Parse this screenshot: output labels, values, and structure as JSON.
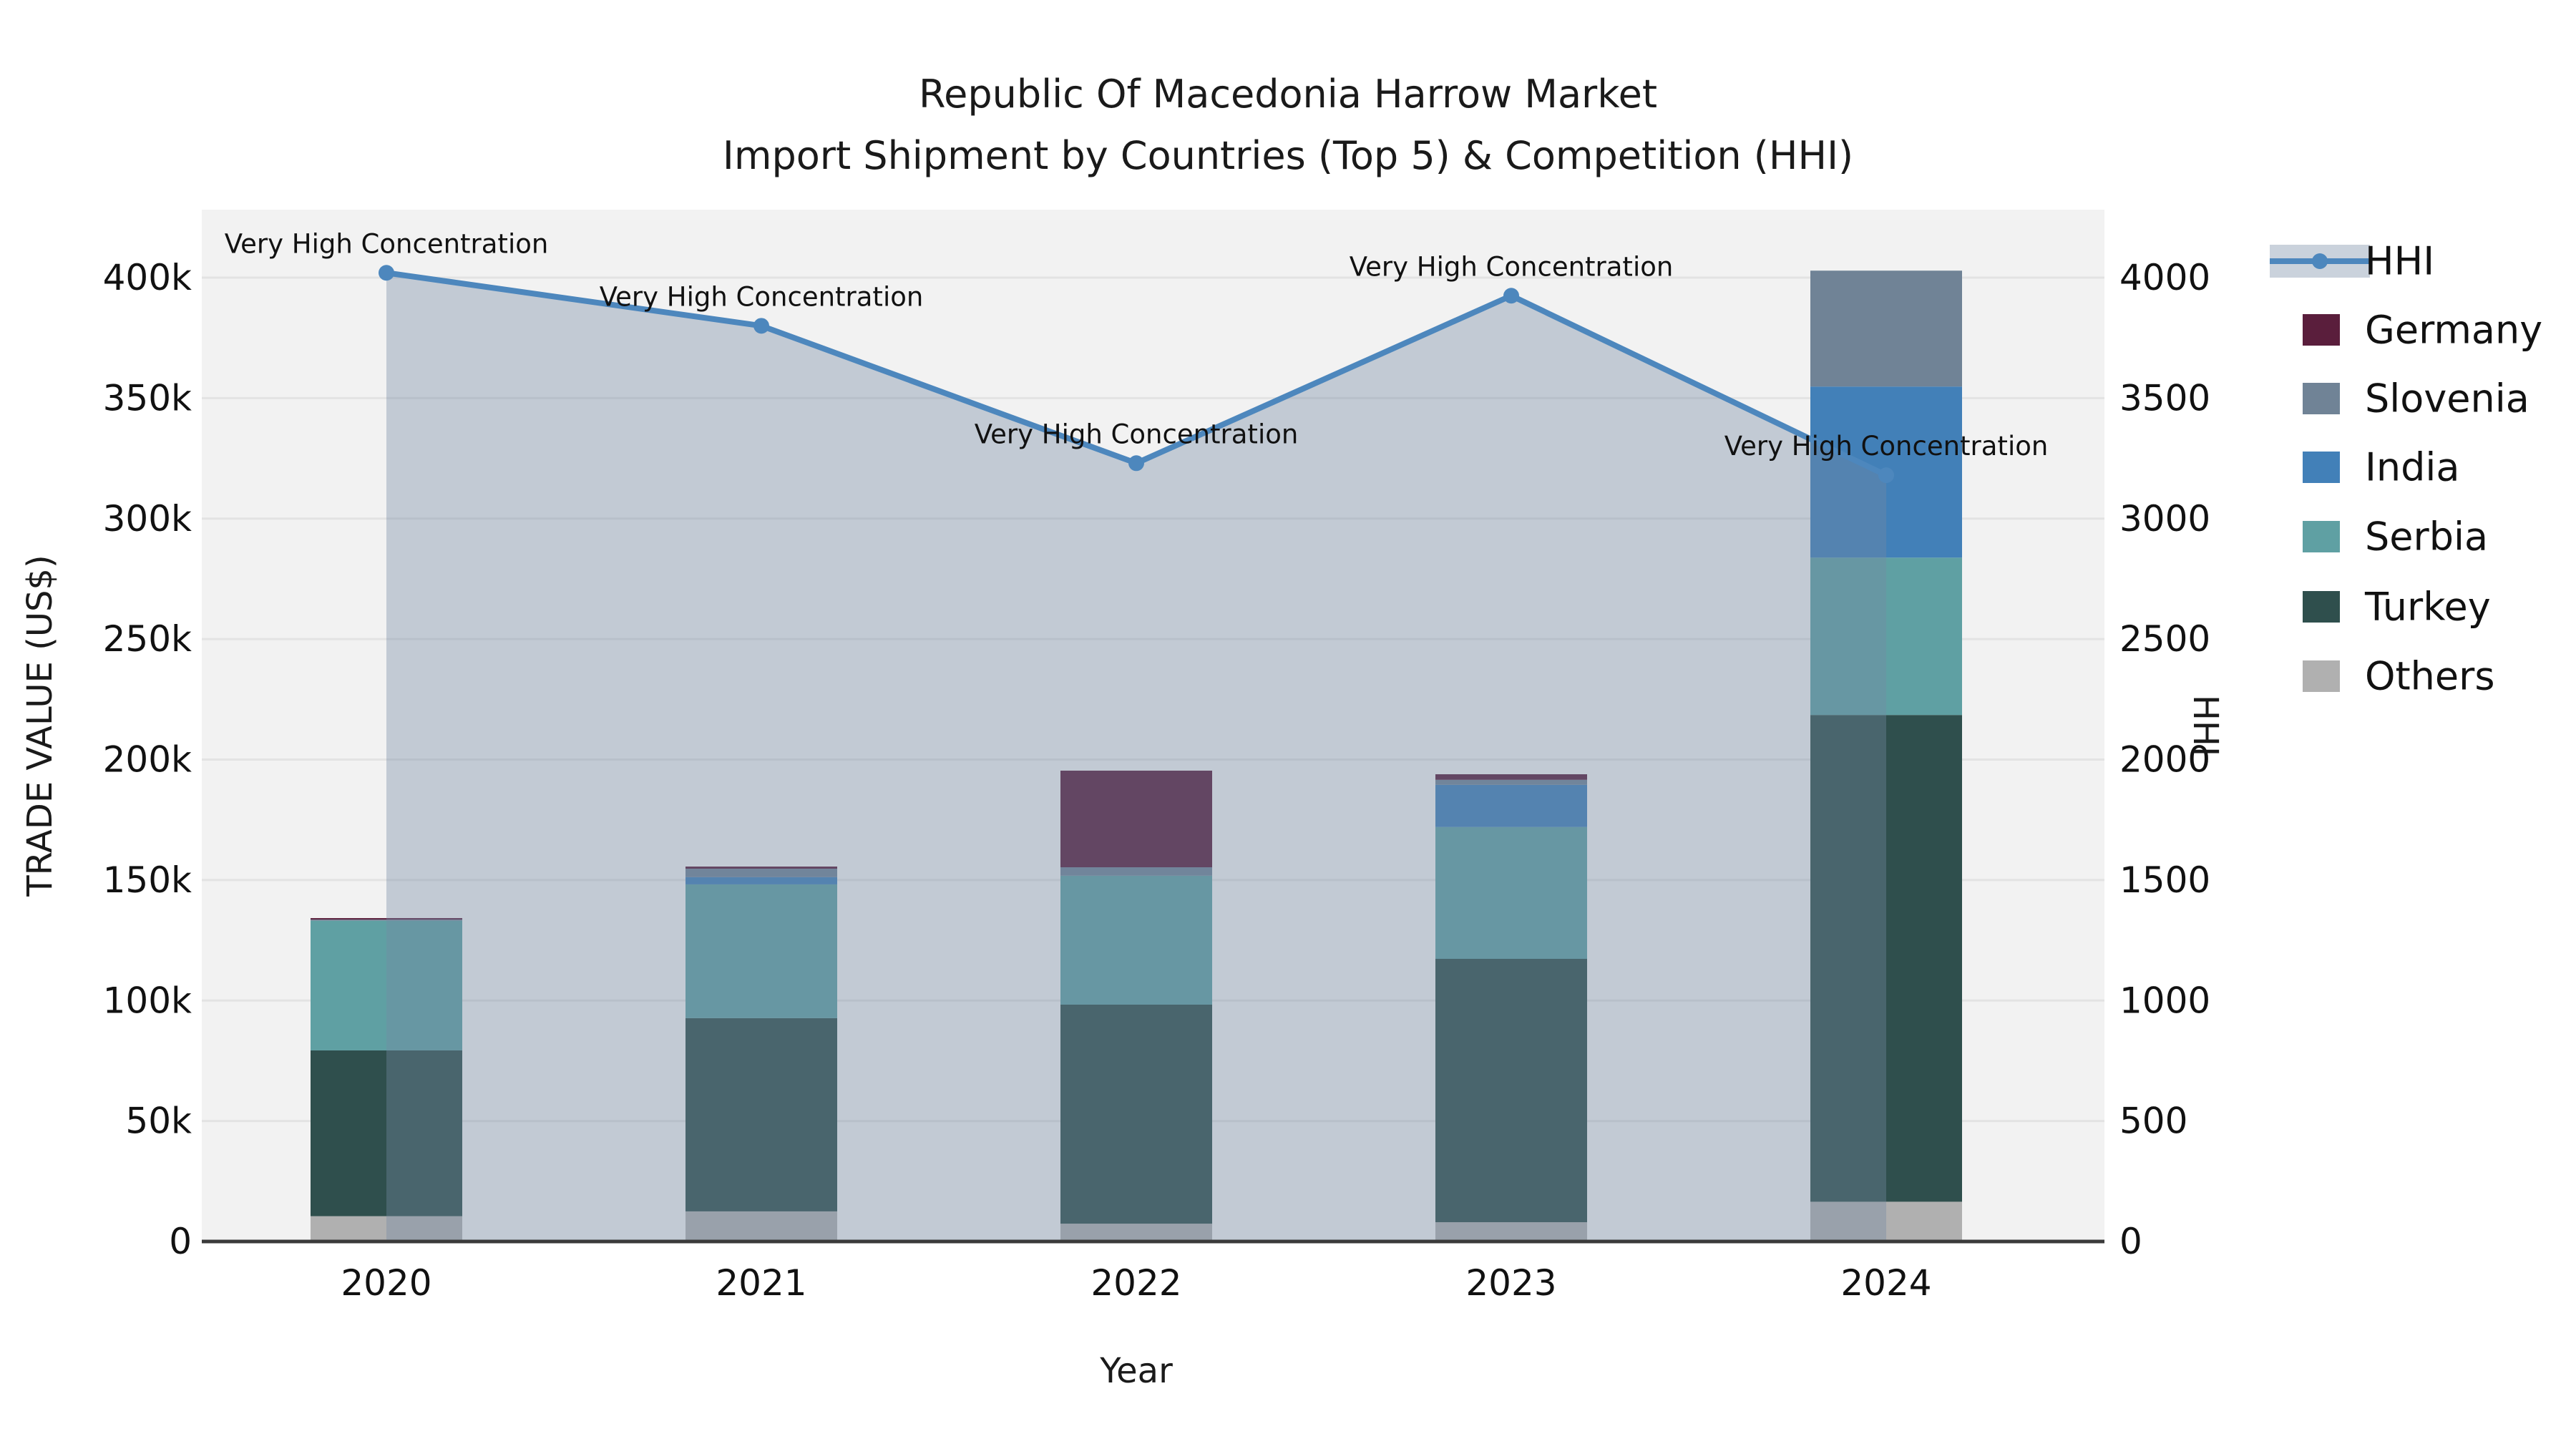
{
  "chart_data": {
    "type": "bar+line",
    "title_line1": "Republic Of Macedonia Harrow Market",
    "title_line2": "Import Shipment by Countries (Top 5) & Competition (HHI)",
    "xlabel": "Year",
    "ylabel_left": "TRADE VALUE (US$)",
    "ylabel_right": "HHI",
    "categories": [
      "2020",
      "2021",
      "2022",
      "2023",
      "2024"
    ],
    "values_unit": "thousand US$",
    "stack_order_bottom_to_top": [
      "Others",
      "Turkey",
      "Serbia",
      "India",
      "Slovenia",
      "Germany"
    ],
    "series": [
      {
        "name": "Germany",
        "color": "#5A1E3C",
        "values": [
          0.6,
          0.9,
          40.1,
          2.3,
          0
        ]
      },
      {
        "name": "Slovenia",
        "color": "#708396",
        "values": [
          0.5,
          3.5,
          3.5,
          2.1,
          48.1
        ]
      },
      {
        "name": "India",
        "color": "#4280B8",
        "values": [
          0,
          3.0,
          0,
          17.5,
          71.0
        ]
      },
      {
        "name": "Serbia",
        "color": "#5FA0A3",
        "values": [
          53.8,
          55.5,
          53.5,
          54.7,
          65.3
        ]
      },
      {
        "name": "Turkey",
        "color": "#2F4F4D",
        "values": [
          68.8,
          80.2,
          90.9,
          109.3,
          202.0
        ]
      },
      {
        "name": "Others",
        "color": "#B0B0B0",
        "values": [
          10.5,
          12.5,
          7.4,
          8.0,
          16.5
        ]
      }
    ],
    "hhi_line": {
      "name": "HHI",
      "color": "#4D87BD",
      "area_fill": "rgba(115,136,162,0.38)",
      "values": [
        4020,
        3800,
        3230,
        3925,
        3180
      ]
    },
    "annotations": [
      {
        "text": "Very High Concentration"
      },
      {
        "text": "Very High Concentration"
      },
      {
        "text": "Very High Concentration"
      },
      {
        "text": "Very High Concentration"
      },
      {
        "text": "Very High Concentration"
      }
    ],
    "y_left_axis": {
      "tick_labels": [
        "0",
        "50k",
        "100k",
        "150k",
        "200k",
        "250k",
        "300k",
        "350k",
        "400k"
      ],
      "tick_values_k": [
        0,
        50,
        100,
        150,
        200,
        250,
        300,
        350,
        400
      ],
      "max_k": 428
    },
    "y_right_axis": {
      "tick_labels": [
        "0",
        "500",
        "1000",
        "1500",
        "2000",
        "2500",
        "3000",
        "3500",
        "4000"
      ],
      "tick_values": [
        0,
        500,
        1000,
        1500,
        2000,
        2500,
        3000,
        3500,
        4000
      ],
      "max": 4280
    },
    "legend_order": [
      "HHI",
      "Germany",
      "Slovenia",
      "India",
      "Serbia",
      "Turkey",
      "Others"
    ],
    "style": {
      "plot_bg": "#F2F2F2",
      "grid_color": "#E3E3E3",
      "axis_color": "#3A3A3A",
      "text_color": "#111111",
      "grid_on": true,
      "legend_position": "right-outside"
    }
  }
}
